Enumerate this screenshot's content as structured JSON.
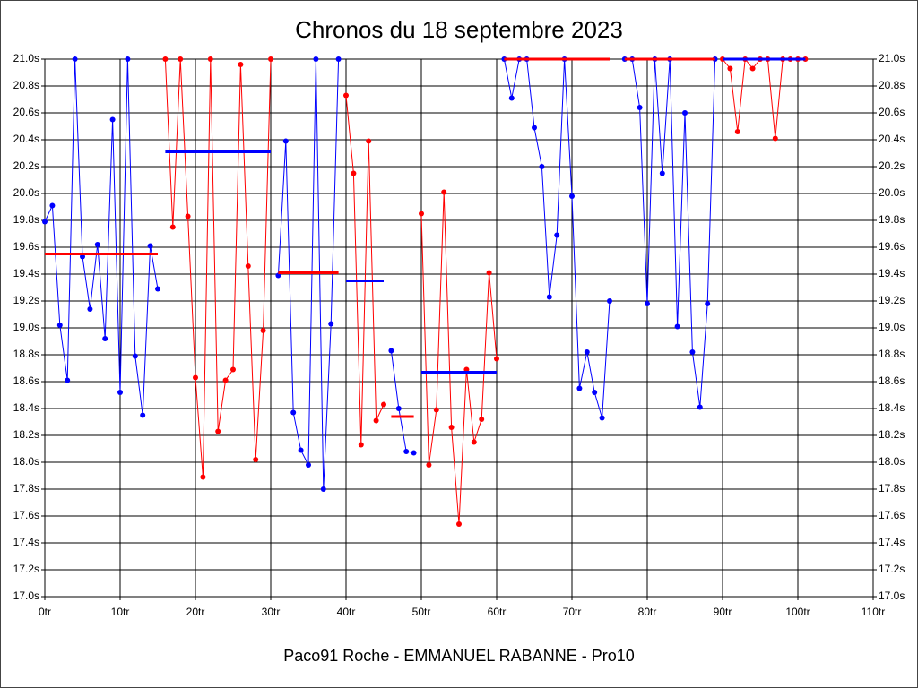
{
  "chart_data": {
    "type": "line",
    "title": "Chronos du 18 septembre 2023",
    "xlabel": "Paco91 Roche - EMMANUEL RABANNE - Pro10",
    "xlim": [
      0,
      110
    ],
    "xticks": [
      {
        "value": 0,
        "label": "0tr"
      },
      {
        "value": 10,
        "label": "10tr"
      },
      {
        "value": 20,
        "label": "20tr"
      },
      {
        "value": 30,
        "label": "30tr"
      },
      {
        "value": 40,
        "label": "40tr"
      },
      {
        "value": 50,
        "label": "50tr"
      },
      {
        "value": 60,
        "label": "60tr"
      },
      {
        "value": 70,
        "label": "70tr"
      },
      {
        "value": 80,
        "label": "80tr"
      },
      {
        "value": 90,
        "label": "90tr"
      },
      {
        "value": 100,
        "label": "100tr"
      },
      {
        "value": 110,
        "label": "110tr"
      }
    ],
    "ylim": [
      17.0,
      21.0
    ],
    "yticks": [
      {
        "value": 17.0,
        "label": "17.0s"
      },
      {
        "value": 17.2,
        "label": "17.2s"
      },
      {
        "value": 17.4,
        "label": "17.4s"
      },
      {
        "value": 17.6,
        "label": "17.6s"
      },
      {
        "value": 17.8,
        "label": "17.8s"
      },
      {
        "value": 18.0,
        "label": "18.0s"
      },
      {
        "value": 18.2,
        "label": "18.2s"
      },
      {
        "value": 18.4,
        "label": "18.4s"
      },
      {
        "value": 18.6,
        "label": "18.6s"
      },
      {
        "value": 18.8,
        "label": "18.8s"
      },
      {
        "value": 19.0,
        "label": "19.0s"
      },
      {
        "value": 19.2,
        "label": "19.2s"
      },
      {
        "value": 19.4,
        "label": "19.4s"
      },
      {
        "value": 19.6,
        "label": "19.6s"
      },
      {
        "value": 19.8,
        "label": "19.8s"
      },
      {
        "value": 20.0,
        "label": "20.0s"
      },
      {
        "value": 20.2,
        "label": "20.2s"
      },
      {
        "value": 20.4,
        "label": "20.4s"
      },
      {
        "value": 20.6,
        "label": "20.6s"
      },
      {
        "value": 20.8,
        "label": "20.8s"
      },
      {
        "value": 21.0,
        "label": "21.0s"
      }
    ],
    "grid": true,
    "series": [
      {
        "color": "#0000ff",
        "average_color": "#ff0000",
        "average": 19.55,
        "x": [
          0,
          1,
          2,
          3,
          4,
          5,
          6,
          7,
          8,
          9,
          10,
          11,
          12,
          13,
          14,
          15
        ],
        "values": [
          19.79,
          19.91,
          19.02,
          18.61,
          21.0,
          19.53,
          19.14,
          19.62,
          18.92,
          20.55,
          18.52,
          21.0,
          18.79,
          18.35,
          19.61,
          19.29
        ]
      },
      {
        "color": "#ff0000",
        "average_color": "#0000ff",
        "average": 20.31,
        "x": [
          16,
          17,
          18,
          19,
          20,
          21,
          22,
          23,
          24,
          25,
          26,
          27,
          28,
          29,
          30
        ],
        "values": [
          21.0,
          19.75,
          21.0,
          19.83,
          18.63,
          17.89,
          21.0,
          18.23,
          18.61,
          18.69,
          20.96,
          19.46,
          18.02,
          18.98,
          21.0
        ]
      },
      {
        "color": "#0000ff",
        "average_color": "#ff0000",
        "average": 19.41,
        "x": [
          31,
          32,
          33,
          34,
          35,
          36,
          37,
          38,
          39
        ],
        "values": [
          19.39,
          20.39,
          18.37,
          18.09,
          17.98,
          21.0,
          17.8,
          19.03,
          21.0
        ]
      },
      {
        "color": "#ff0000",
        "average_color": "#0000ff",
        "average": 19.35,
        "x": [
          40,
          41,
          42,
          43,
          44,
          45
        ],
        "values": [
          20.73,
          20.15,
          18.13,
          20.39,
          18.31,
          18.43
        ]
      },
      {
        "color": "#0000ff",
        "average_color": "#ff0000",
        "average": 18.34,
        "x": [
          46,
          47,
          48,
          49
        ],
        "values": [
          18.83,
          18.4,
          18.08,
          18.07
        ]
      },
      {
        "color": "#ff0000",
        "average_color": "#0000ff",
        "average": 18.67,
        "x": [
          50,
          51,
          52,
          53,
          54,
          55,
          56,
          57,
          58,
          59,
          60
        ],
        "values": [
          19.85,
          17.98,
          18.39,
          20.01,
          18.26,
          17.54,
          18.69,
          18.15,
          18.32,
          19.41,
          18.77
        ]
      },
      {
        "color": "#0000ff",
        "average_color": "#ff0000",
        "average": 21.0,
        "x": [
          61,
          62,
          63,
          64,
          65,
          66,
          67,
          68,
          69,
          70,
          71,
          72,
          73,
          74,
          75
        ],
        "values": [
          21.0,
          20.71,
          21.0,
          21.0,
          20.49,
          20.2,
          19.23,
          19.69,
          21.0,
          19.98,
          18.55,
          18.82,
          18.52,
          18.33,
          19.2
        ]
      },
      {
        "color": "#0000ff",
        "average_color": "#ff0000",
        "average": 21.0,
        "x": [
          77,
          78,
          79,
          80,
          81,
          82,
          83,
          84,
          85,
          86,
          87,
          88,
          89
        ],
        "values": [
          21.0,
          21.0,
          20.64,
          19.18,
          21.0,
          20.15,
          21.0,
          19.01,
          20.6,
          18.82,
          18.41,
          19.18,
          21.0
        ]
      },
      {
        "color": "#ff0000",
        "average_color": "#0000ff",
        "average": 21.0,
        "x": [
          90,
          91,
          92,
          93,
          94,
          95,
          96,
          97,
          98,
          99,
          100,
          101
        ],
        "values": [
          21.0,
          20.93,
          20.46,
          21.0,
          20.93,
          21.0,
          21.0,
          20.41,
          21.0,
          21.0,
          21.0,
          21.0
        ]
      }
    ]
  }
}
